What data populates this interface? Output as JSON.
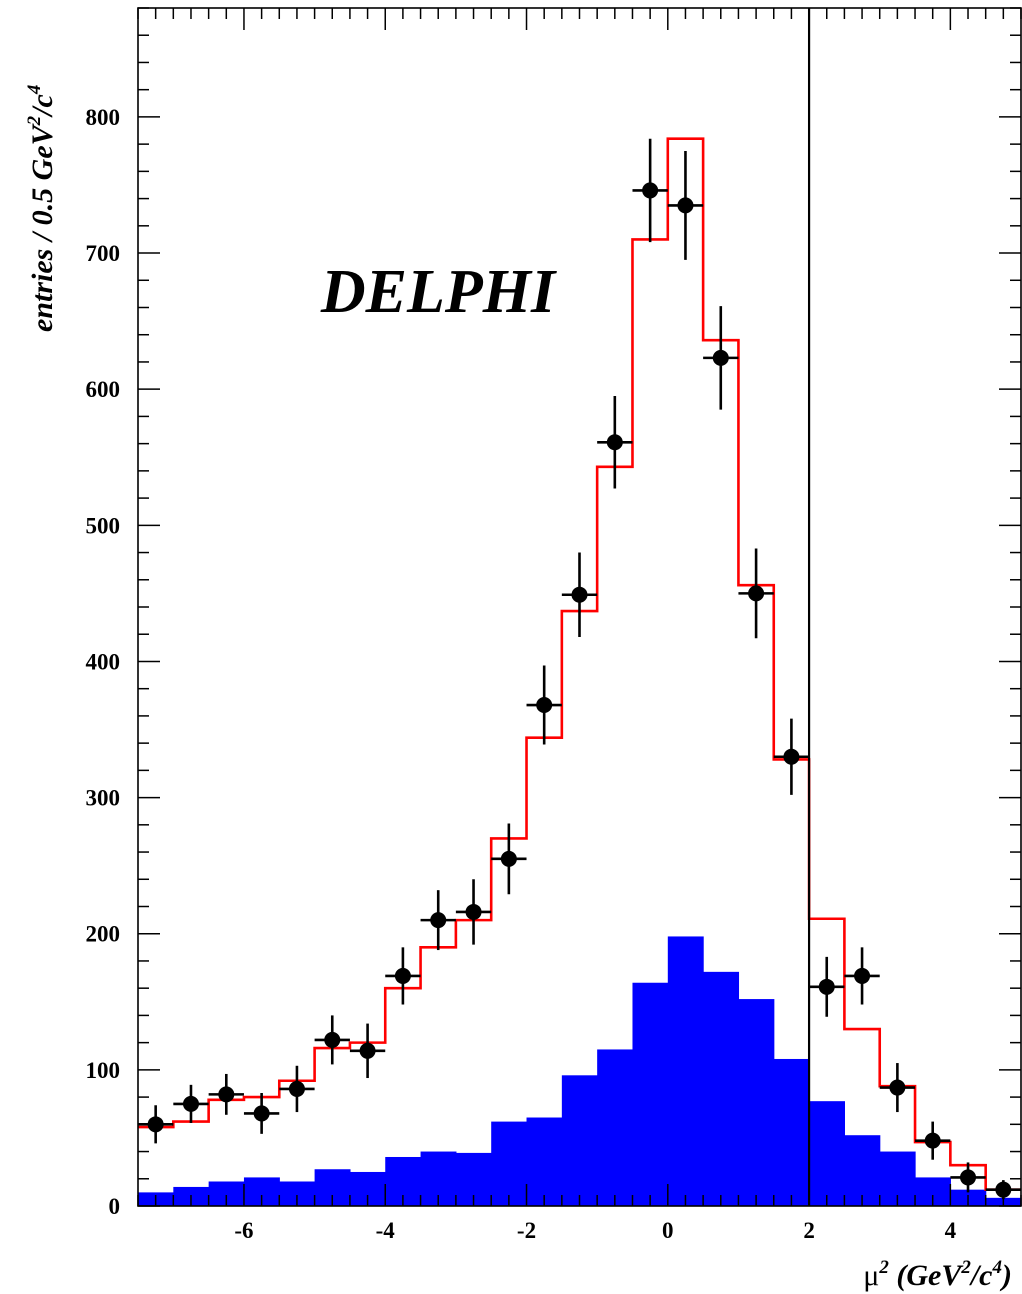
{
  "chart_data": {
    "type": "histogram",
    "experiment_label": "DELPHI",
    "xlabel": {
      "mu": "μ",
      "two": "2",
      "rest": " (GeV",
      "two2": "2",
      "slash": "/c",
      "four": "4",
      "close": ")"
    },
    "ylabel": {
      "main": "entries / 0.5  GeV",
      "two": "2",
      "slash": "/c",
      "four": "4"
    },
    "xlim": [
      -7.5,
      5.0
    ],
    "ylim": [
      0,
      880
    ],
    "bin_width": 0.5,
    "x_ticks": [
      -6,
      -4,
      -2,
      0,
      2,
      4
    ],
    "y_ticks": [
      0,
      100,
      200,
      300,
      400,
      500,
      600,
      700,
      800
    ],
    "cut_line_x": 2,
    "bin_centers": [
      -7.25,
      -6.75,
      -6.25,
      -5.75,
      -5.25,
      -4.75,
      -4.25,
      -3.75,
      -3.25,
      -2.75,
      -2.25,
      -1.75,
      -1.25,
      -0.75,
      -0.25,
      0.25,
      0.75,
      1.25,
      1.75,
      2.25,
      2.75,
      3.25,
      3.75,
      4.25,
      4.75
    ],
    "series": [
      {
        "style": "filled-histogram",
        "color": "#0000ff",
        "values": [
          10,
          14,
          18,
          21,
          18,
          27,
          25,
          36,
          40,
          39,
          62,
          65,
          96,
          115,
          164,
          198,
          172,
          152,
          108,
          77,
          52,
          40,
          21,
          12,
          6
        ]
      },
      {
        "style": "step-line",
        "color": "#ff0000",
        "values": [
          58,
          62,
          78,
          80,
          92,
          116,
          120,
          160,
          190,
          210,
          270,
          344,
          437,
          543,
          710,
          784,
          636,
          456,
          328,
          211,
          130,
          88,
          47,
          30,
          12
        ]
      },
      {
        "style": "points-with-errors",
        "color": "#000000",
        "values": [
          60,
          75,
          82,
          68,
          86,
          122,
          114,
          169,
          210,
          216,
          255,
          368,
          449,
          561,
          746,
          735,
          623,
          450,
          330,
          161,
          169,
          87,
          48,
          21,
          12
        ],
        "errors": [
          14,
          14,
          15,
          15,
          17,
          18,
          20,
          21,
          22,
          24,
          26,
          29,
          31,
          34,
          38,
          40,
          38,
          33,
          28,
          22,
          21,
          18,
          14,
          11,
          7
        ]
      }
    ]
  }
}
